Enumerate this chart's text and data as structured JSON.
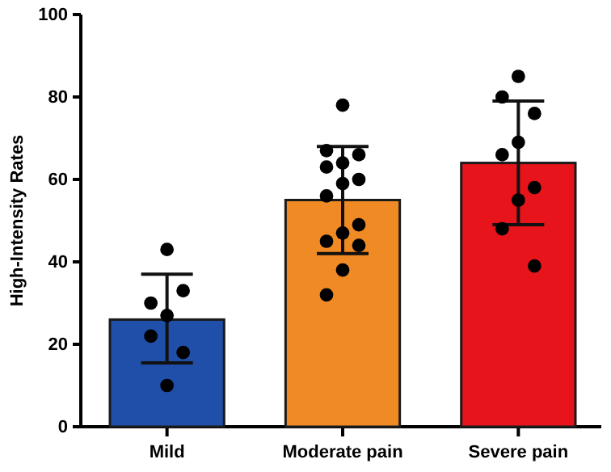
{
  "chart_data": {
    "type": "bar",
    "ylabel": "High-Intensity Rates",
    "categories": [
      "Mild",
      "Moderate pain",
      "Severe pain"
    ],
    "ylim": [
      0,
      100
    ],
    "yticks": [
      0,
      20,
      40,
      60,
      80,
      100
    ],
    "grid": false,
    "series": [
      {
        "values": [
          26,
          55,
          64
        ],
        "colors": [
          "#1f4fa8",
          "#f08a24",
          "#e8141c"
        ],
        "errors": [
          [
            15.5,
            37
          ],
          [
            42,
            68
          ],
          [
            49,
            79
          ]
        ]
      },
      {
        "type": "scatter",
        "color": "#000000",
        "marker": "circle",
        "x": [
          "Mild",
          "Mild",
          "Mild",
          "Mild",
          "Mild",
          "Mild",
          "Mild",
          "Moderate pain",
          "Moderate pain",
          "Moderate pain",
          "Moderate pain",
          "Moderate pain",
          "Moderate pain",
          "Moderate pain",
          "Moderate pain",
          "Moderate pain",
          "Moderate pain",
          "Moderate pain",
          "Moderate pain",
          "Moderate pain",
          "Moderate pain",
          "Severe pain",
          "Severe pain",
          "Severe pain",
          "Severe pain",
          "Severe pain",
          "Severe pain",
          "Severe pain",
          "Severe pain",
          "Severe pain"
        ],
        "values": [
          43,
          30,
          33,
          27,
          22,
          18,
          10,
          78,
          67,
          66,
          64,
          63,
          60,
          59,
          56,
          49,
          47,
          45,
          44,
          38,
          32,
          85,
          80,
          76,
          69,
          66,
          58,
          55,
          48,
          39
        ]
      }
    ]
  }
}
